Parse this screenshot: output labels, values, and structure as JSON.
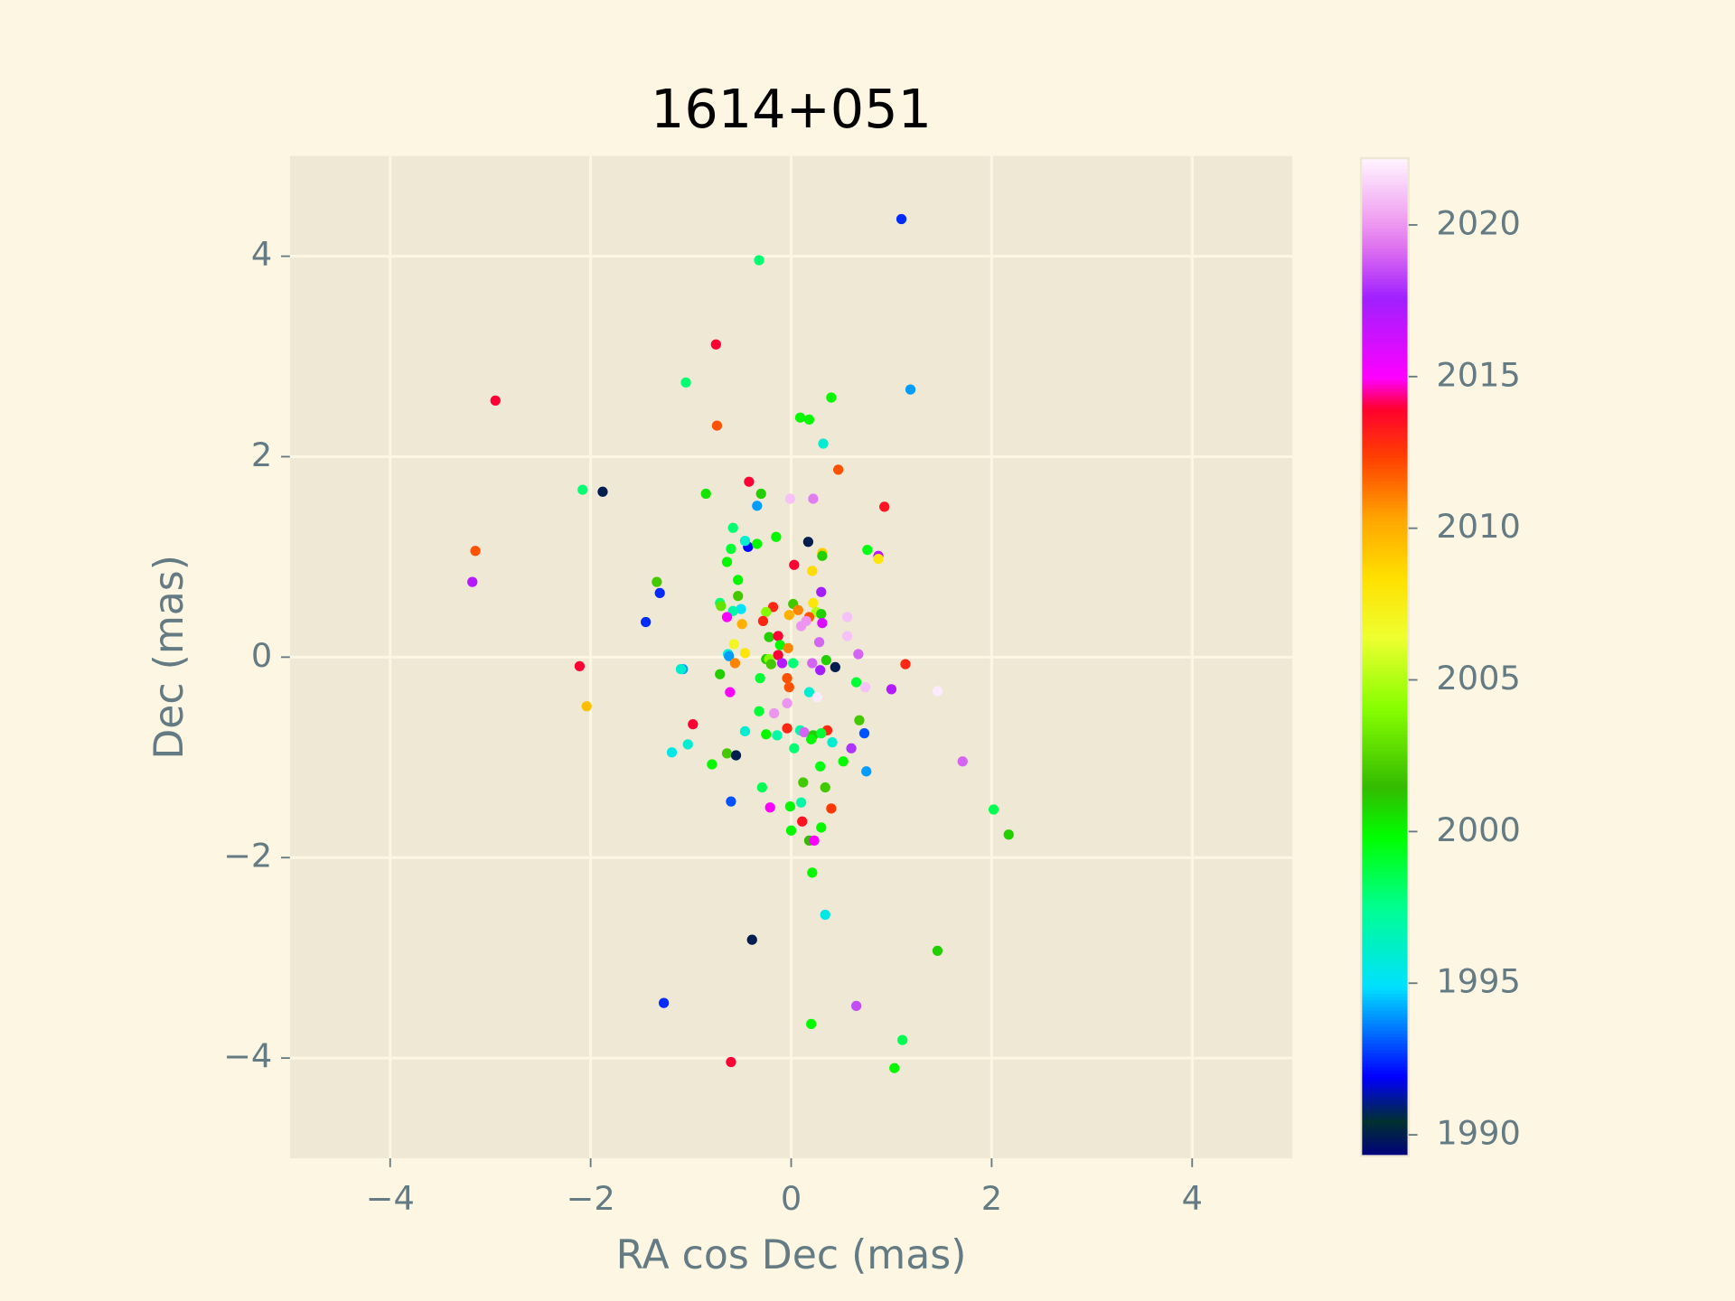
{
  "chart_data": {
    "type": "scatter",
    "title": "1614+051",
    "xlabel": "RA cos Dec (mas)",
    "ylabel": "Dec (mas)",
    "xlim": [
      -5,
      5
    ],
    "ylim": [
      -5,
      5
    ],
    "xticks": [
      {
        "value": -4,
        "label": "−4"
      },
      {
        "value": -2,
        "label": "−2"
      },
      0,
      2,
      4
    ],
    "yticks": [
      {
        "value": -4,
        "label": "−4"
      },
      {
        "value": -2,
        "label": "−2"
      },
      0,
      2,
      4
    ],
    "grid": true,
    "colormap": "gist_ncar",
    "clim": [
      1989.3,
      2022.2
    ],
    "cticks": [
      1990,
      1995,
      2000,
      2005,
      2010,
      2015,
      2020
    ],
    "x": [
      1.1,
      -0.32,
      -0.75,
      -2.95,
      1.19,
      -1.05,
      0.4,
      0.09,
      0.18,
      -0.74,
      0.32,
      0.47,
      -2.08,
      -1.88,
      -0.42,
      -0.85,
      -0.3,
      -0.34,
      -0.01,
      0.22,
      0.93,
      -0.58,
      -0.15,
      0.17,
      -3.15,
      -0.6,
      -0.43,
      -0.34,
      -0.46,
      0.31,
      0.31,
      0.76,
      0.87,
      0.87,
      0.03,
      -0.64,
      0.21,
      -3.18,
      -1.34,
      -0.53,
      -1.31,
      0.3,
      -0.53,
      -0.71,
      -0.7,
      0.02,
      0.22,
      -0.5,
      -0.18,
      -0.25,
      -0.58,
      0.07,
      0.25,
      0.3,
      0.56,
      -0.02,
      0.18,
      0.15,
      -0.64,
      -1.45,
      -0.28,
      -0.49,
      0.31,
      0.1,
      0.56,
      -0.22,
      -0.13,
      -0.57,
      -0.11,
      0.28,
      -0.03,
      -0.63,
      -0.46,
      -0.62,
      -0.13,
      0.67,
      -0.13,
      -0.25,
      -0.22,
      0.35,
      -0.09,
      0.02,
      -0.56,
      0.21,
      1.14,
      -2.11,
      -0.2,
      0.44,
      -1.08,
      -1.1,
      0.29,
      -0.71,
      -0.04,
      -0.31,
      0.65,
      0.74,
      -0.02,
      1.0,
      1.46,
      -0.61,
      0.18,
      0.26,
      -0.04,
      -2.04,
      -0.32,
      -0.17,
      -0.98,
      0.68,
      -0.04,
      0.09,
      0.13,
      0.36,
      -0.46,
      0.73,
      -0.25,
      -0.14,
      0.22,
      0.3,
      0.2,
      0.41,
      -1.03,
      0.03,
      0.6,
      -1.19,
      -0.64,
      -0.55,
      1.71,
      0.52,
      -0.79,
      0.29,
      0.75,
      0.12,
      -0.29,
      0.34,
      -0.6,
      0.1,
      2.02,
      -0.01,
      -0.21,
      0.4,
      0.11,
      0.0,
      0.3,
      2.17,
      0.18,
      0.23,
      0.21,
      0.34,
      -0.39,
      1.46,
      -1.27,
      0.65,
      0.2,
      1.11,
      -0.6,
      1.03
    ],
    "y": [
      4.37,
      3.96,
      3.12,
      2.56,
      2.67,
      2.74,
      2.59,
      2.39,
      2.37,
      2.31,
      2.13,
      1.87,
      1.67,
      1.65,
      1.75,
      1.63,
      1.63,
      1.51,
      1.58,
      1.58,
      1.5,
      1.29,
      1.2,
      1.15,
      1.06,
      1.08,
      1.1,
      1.13,
      1.16,
      1.04,
      1.01,
      1.07,
      1.01,
      0.98,
      0.92,
      0.95,
      0.86,
      0.75,
      0.75,
      0.77,
      0.64,
      0.65,
      0.61,
      0.54,
      0.51,
      0.53,
      0.54,
      0.48,
      0.5,
      0.45,
      0.46,
      0.47,
      0.45,
      0.43,
      0.4,
      0.42,
      0.4,
      0.36,
      0.4,
      0.35,
      0.36,
      0.33,
      0.34,
      0.31,
      0.21,
      0.2,
      0.21,
      0.13,
      0.12,
      0.15,
      0.09,
      0.03,
      0.04,
      0.01,
      0.02,
      0.03,
      0.02,
      -0.02,
      -0.02,
      -0.03,
      -0.06,
      -0.06,
      -0.06,
      -0.06,
      -0.07,
      -0.09,
      -0.07,
      -0.1,
      -0.12,
      -0.12,
      -0.13,
      -0.17,
      -0.21,
      -0.21,
      -0.25,
      -0.3,
      -0.3,
      -0.32,
      -0.34,
      -0.35,
      -0.35,
      -0.4,
      -0.46,
      -0.49,
      -0.54,
      -0.56,
      -0.67,
      -0.63,
      -0.71,
      -0.73,
      -0.75,
      -0.73,
      -0.74,
      -0.76,
      -0.77,
      -0.78,
      -0.78,
      -0.76,
      -0.82,
      -0.85,
      -0.87,
      -0.91,
      -0.91,
      -0.95,
      -0.96,
      -0.98,
      -1.04,
      -1.04,
      -1.07,
      -1.09,
      -1.14,
      -1.25,
      -1.3,
      -1.3,
      -1.44,
      -1.45,
      -1.52,
      -1.49,
      -1.5,
      -1.51,
      -1.64,
      -1.73,
      -1.7,
      -1.77,
      -1.83,
      -1.83,
      -2.15,
      -2.57,
      -2.82,
      -2.93,
      -3.45,
      -3.48,
      -3.66,
      -3.82,
      -4.04,
      -4.1
    ],
    "c": [
      1992.5,
      1998,
      2014,
      2014,
      1994,
      1998,
      2000,
      2000,
      2000,
      2012,
      1996,
      2012,
      1998,
      1990,
      2014,
      2000.5,
      2001,
      1994,
      2021,
      2019.5,
      2013.5,
      1998,
      2000,
      1990,
      2012,
      1999,
      1992,
      2000,
      1996,
      2009,
      2001,
      1999.5,
      2017,
      2008,
      2014,
      2000,
      2008.5,
      2017,
      2002,
      2000,
      1992.5,
      2017.5,
      2002,
      1998,
      2003,
      2002,
      2008,
      1995,
      2013,
      2004,
      1997,
      2011,
      2005,
      2001,
      2021,
      2010,
      2012,
      2020,
      2015,
      1992.5,
      2013,
      2010,
      2016,
      2020,
      2021,
      2001,
      2014,
      2007,
      2000,
      2019,
      2011,
      1996,
      2008,
      1994,
      1995.5,
      2019,
      2014,
      2001,
      2004,
      2001,
      2017,
      1998,
      2011,
      2019,
      2013,
      2014,
      2002,
      1990,
      1994,
      1996,
      2017.5,
      2001,
      2012,
      1999,
      1999,
      2021,
      2012,
      2017,
      2022,
      2015,
      1996,
      2022,
      2020,
      2009.5,
      1999,
      2020,
      2014,
      2002,
      2013,
      1997,
      2019,
      2013,
      1996,
      1993,
      2000,
      1997,
      2001,
      1999,
      2000,
      1996,
      1996,
      1998,
      2018,
      1995.5,
      2002,
      1990,
      2019,
      2000,
      2000,
      1999.5,
      1994,
      2002,
      1998.5,
      2002,
      1993,
      1997,
      1998.5,
      2000,
      2015,
      2012.5,
      2013.5,
      2000,
      2000,
      2001,
      2001.5,
      2015,
      2000,
      1995.5,
      1990,
      2001,
      1992.5,
      2018.5,
      2000,
      1998.5,
      2014,
      2000
    ]
  }
}
